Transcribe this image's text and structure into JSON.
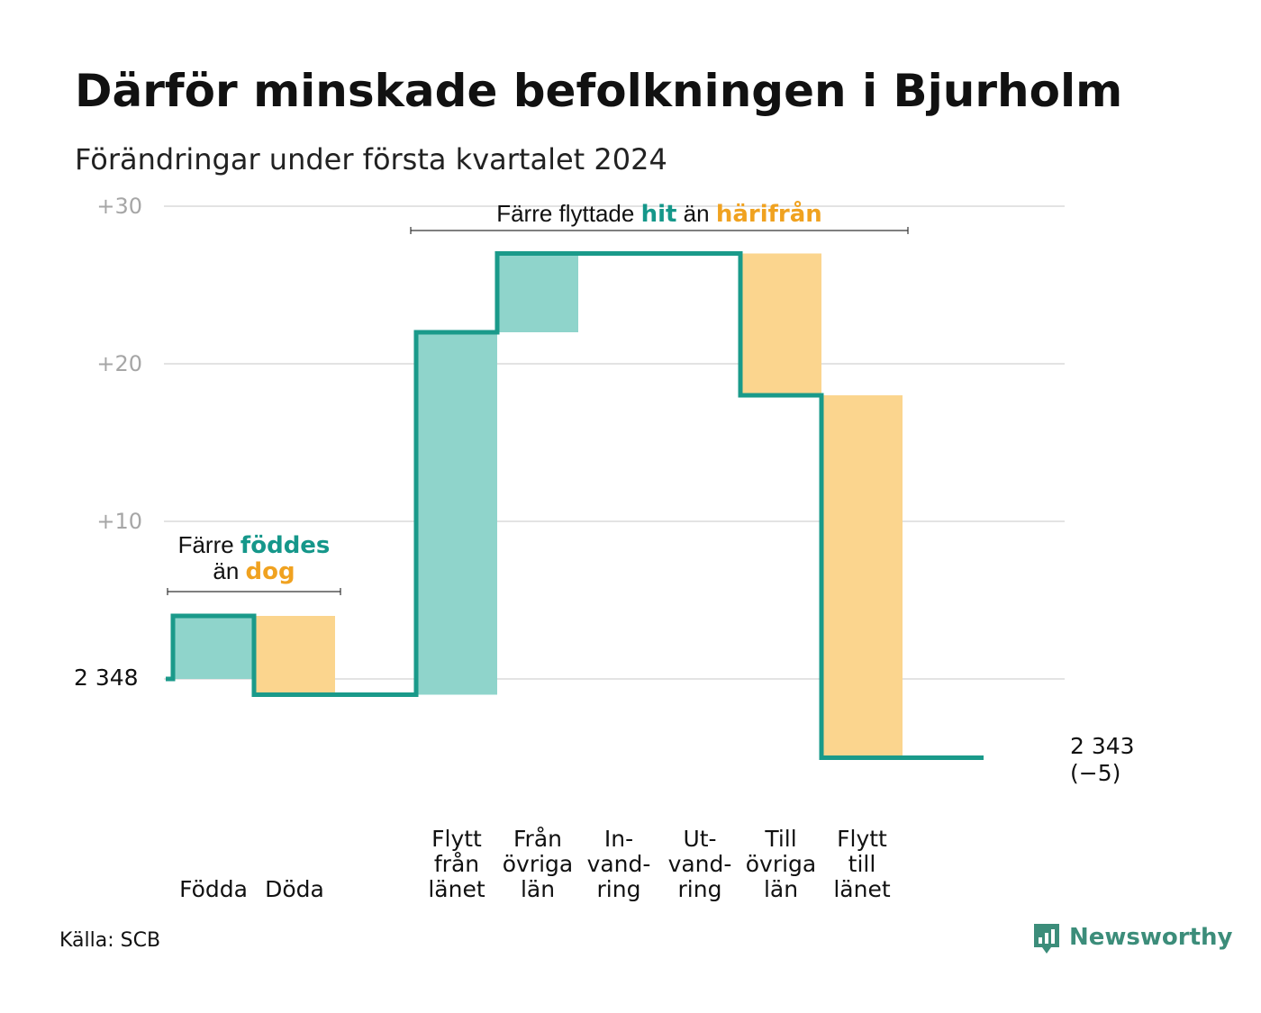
{
  "title": "Därför minskade befolkningen i Bjurholm",
  "subtitle": "Förändringar under första kvartalet 2024",
  "source": "Källa: SCB",
  "brand": {
    "name": "Newsworthy",
    "icon": "newsworthy-logo-icon"
  },
  "colors": {
    "increase": "#8fd4cb",
    "decrease": "#fbd58e",
    "line": "#1a9a8a",
    "grid": "#e3e3e3",
    "accent_teal": "#15978a",
    "accent_orange": "#f0a220"
  },
  "chart_data": {
    "type": "waterfall",
    "start_label": "2 348",
    "end_label": "2 343",
    "end_change_label": "(−5)",
    "start_value": 0,
    "y_ticks": [
      "+30",
      "+20",
      "+10"
    ],
    "y_tick_values": [
      30,
      20,
      10
    ],
    "ylim": [
      -6,
      30
    ],
    "grid": true,
    "steps": [
      {
        "category": [
          "Födda"
        ],
        "value": 4,
        "kind": "increase"
      },
      {
        "category": [
          "Döda"
        ],
        "value": -5,
        "kind": "decrease"
      },
      {
        "category": [],
        "value": 0,
        "kind": "none"
      },
      {
        "category": [
          "Flytt",
          "från",
          "länet"
        ],
        "value": 23,
        "kind": "increase"
      },
      {
        "category": [
          "Från",
          "övriga",
          "län"
        ],
        "value": 5,
        "kind": "increase"
      },
      {
        "category": [
          "In-",
          "vand-",
          "ring"
        ],
        "value": 0,
        "kind": "increase"
      },
      {
        "category": [
          "Ut-",
          "vand-",
          "ring"
        ],
        "value": 0,
        "kind": "decrease"
      },
      {
        "category": [
          "Till",
          "övriga",
          "län"
        ],
        "value": -9,
        "kind": "decrease"
      },
      {
        "category": [
          "Flytt",
          "till",
          "länet"
        ],
        "value": -23,
        "kind": "decrease"
      },
      {
        "category": [],
        "value": 0,
        "kind": "none"
      }
    ],
    "annotations": [
      {
        "lines": [
          [
            {
              "text": "Färre ",
              "style": "plain"
            },
            {
              "text": "föddes",
              "style": "teal"
            }
          ],
          [
            {
              "text": "än ",
              "style": "plain"
            },
            {
              "text": "dog",
              "style": "orange"
            }
          ]
        ],
        "span": [
          0,
          2
        ]
      },
      {
        "lines": [
          [
            {
              "text": "Färre flyttade ",
              "style": "plain"
            },
            {
              "text": "hit",
              "style": "teal"
            },
            {
              "text": " än ",
              "style": "plain"
            },
            {
              "text": "härifrån",
              "style": "orange"
            }
          ]
        ],
        "span": [
          3,
          9
        ]
      }
    ]
  }
}
